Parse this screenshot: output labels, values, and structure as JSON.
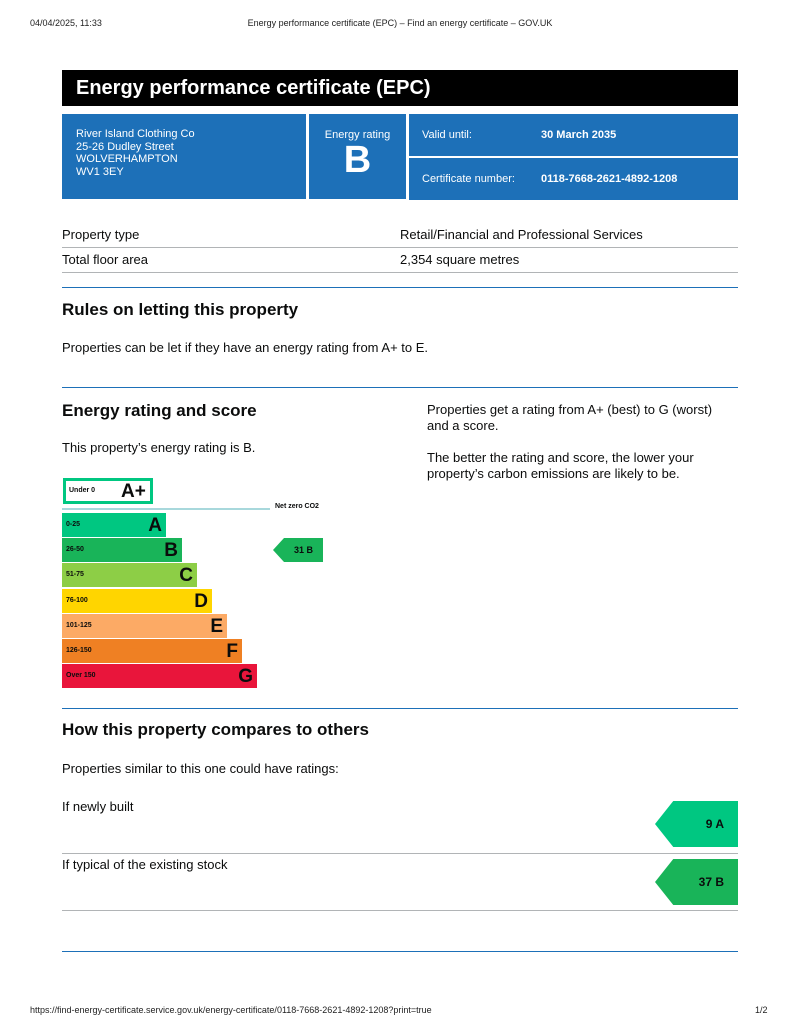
{
  "print_header": {
    "datetime": "04/04/2025, 11:33",
    "page_title": "Energy performance certificate (EPC) – Find an energy certificate – GOV.UK"
  },
  "title": "Energy performance certificate (EPC)",
  "address": [
    "River Island Clothing Co",
    "25-26 Dudley Street",
    "WOLVERHAMPTON",
    "WV1 3EY"
  ],
  "rating_box": {
    "label": "Energy rating",
    "value": "B"
  },
  "valid_until": {
    "label": "Valid until:",
    "value": "30 March 2035"
  },
  "certificate_number": {
    "label": "Certificate number:",
    "value": "0118-7668-2621-4892-1208"
  },
  "property": [
    {
      "label": "Property type",
      "value": "Retail/Financial and Professional Services"
    },
    {
      "label": "Total floor area",
      "value": "2,354 square metres"
    }
  ],
  "rules": {
    "heading": "Rules on letting this property",
    "text": "Properties can be let if they have an energy rating from A+ to E."
  },
  "energy": {
    "heading": "Energy rating and score",
    "text": "This property’s energy rating is B.",
    "side1": "Properties get a rating from A+ (best) to G (worst) and a score.",
    "side2": "The better the rating and score, the lower your property’s carbon emissions are likely to be."
  },
  "scale": {
    "aplus": {
      "range": "Under 0",
      "letter": "A+",
      "color": "#00c781"
    },
    "net_zero": "Net zero CO2",
    "bands": [
      {
        "range": "0-25",
        "letter": "A",
        "color": "#00c781"
      },
      {
        "range": "26-50",
        "letter": "B",
        "color": "#19b459"
      },
      {
        "range": "51-75",
        "letter": "C",
        "color": "#8dce46"
      },
      {
        "range": "76-100",
        "letter": "D",
        "color": "#ffd500"
      },
      {
        "range": "101-125",
        "letter": "E",
        "color": "#fcaa65"
      },
      {
        "range": "126-150",
        "letter": "F",
        "color": "#ef8023"
      },
      {
        "range": "Over 150",
        "letter": "G",
        "color": "#e9153b"
      }
    ],
    "current": {
      "score": "31",
      "letter": "B",
      "label": "31  B"
    }
  },
  "compare": {
    "heading": "How this property compares to others",
    "text": "Properties similar to this one could have ratings:",
    "items": [
      {
        "label": "If newly built",
        "score": "9  A",
        "color": "#00c781"
      },
      {
        "label": "If typical of the existing stock",
        "score": "37  B",
        "color": "#19b459"
      }
    ]
  },
  "footer": {
    "url": "https://find-energy-certificate.service.gov.uk/energy-certificate/0118-7668-2621-4892-1208?print=true",
    "page": "1/2"
  }
}
